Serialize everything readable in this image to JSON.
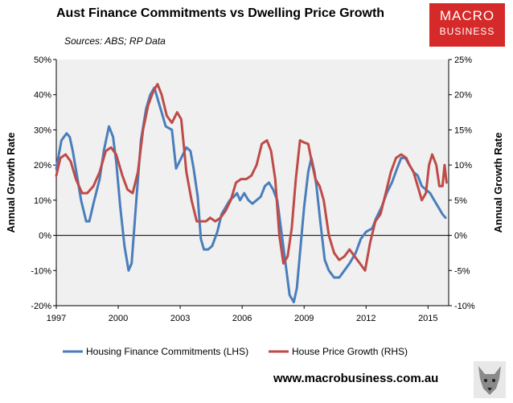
{
  "title": "Aust Finance Commitments vs Dwelling Price Growth",
  "subtitle": "Sources: ABS; RP Data",
  "logo": {
    "line1": "MACRO",
    "line2": "BUSINESS"
  },
  "footer": {
    "url": "www.macrobusiness.com.au"
  },
  "icons": {
    "logo_icon": "wolf-icon"
  },
  "colors": {
    "hfc": "#4a7ebb",
    "hpg": "#be4b48",
    "plot_bg": "#f0f0f0",
    "logo_bg": "#d62a2a"
  },
  "chart_data": {
    "type": "line",
    "title": "Aust Finance Commitments vs Dwelling Price Growth",
    "ylabel": "Annual Growth Rate",
    "y2label": "Annual Growth Rate",
    "xlim": [
      1997,
      2016
    ],
    "ylim": [
      -20,
      50
    ],
    "y2lim": [
      -10,
      25
    ],
    "x_ticks": [
      "1997",
      "2000",
      "2003",
      "2006",
      "2009",
      "2012",
      "2015"
    ],
    "y_ticks": [
      "50%",
      "40%",
      "30%",
      "20%",
      "10%",
      "0%",
      "-10%",
      "-20%"
    ],
    "y2_ticks": [
      "25%",
      "20%",
      "15%",
      "10%",
      "5%",
      "0%",
      "-5%",
      "-10%"
    ],
    "grid": false,
    "legend": "bottom",
    "series": [
      {
        "name": "Housing Finance Commitments (LHS)",
        "axis": "left",
        "x": [
          1997.0,
          1997.25,
          1997.5,
          1997.65,
          1997.8,
          1998.0,
          1998.2,
          1998.45,
          1998.6,
          1998.8,
          1999.1,
          1999.3,
          1999.55,
          1999.75,
          1999.9,
          2000.1,
          2000.3,
          2000.5,
          2000.65,
          2000.75,
          2000.9,
          2001.1,
          2001.35,
          2001.55,
          2001.75,
          2001.95,
          2002.1,
          2002.3,
          2002.6,
          2002.8,
          2003.05,
          2003.3,
          2003.5,
          2003.65,
          2003.85,
          2004.0,
          2004.15,
          2004.35,
          2004.55,
          2004.8,
          2005.0,
          2005.2,
          2005.4,
          2005.6,
          2005.75,
          2005.9,
          2006.1,
          2006.3,
          2006.5,
          2006.7,
          2006.9,
          2007.1,
          2007.3,
          2007.5,
          2007.7,
          2007.9,
          2008.1,
          2008.3,
          2008.5,
          2008.65,
          2008.8,
          2009.0,
          2009.2,
          2009.35,
          2009.5,
          2009.6,
          2009.8,
          2010.0,
          2010.2,
          2010.45,
          2010.7,
          2010.95,
          2011.2,
          2011.5,
          2011.75,
          2012.0,
          2012.3,
          2012.5,
          2012.75,
          2013.0,
          2013.25,
          2013.5,
          2013.7,
          2013.9,
          2014.1,
          2014.3,
          2014.5,
          2014.7,
          2014.9,
          2015.1,
          2015.3,
          2015.5,
          2015.7,
          2015.85
        ],
        "values": [
          19,
          27,
          29,
          28,
          24,
          17,
          10,
          4,
          4,
          9,
          16,
          24,
          31,
          28,
          21,
          8,
          -3,
          -10,
          -8,
          0,
          12,
          27,
          36,
          40,
          42,
          38,
          35,
          31,
          30,
          19,
          22,
          25,
          24,
          19,
          11,
          -1,
          -4,
          -4,
          -3,
          1,
          6,
          8,
          10,
          11,
          12,
          10,
          12,
          10,
          9,
          10,
          11,
          14,
          15,
          13,
          10,
          1,
          -8,
          -17,
          -19,
          -15,
          -5,
          8,
          18,
          22,
          18,
          14,
          3,
          -7,
          -10,
          -12,
          -12,
          -10,
          -8,
          -5,
          -1,
          1,
          2,
          5,
          8,
          12,
          15,
          19,
          22,
          22,
          20,
          18,
          17,
          14,
          13,
          12,
          10,
          8,
          6,
          5
        ]
      },
      {
        "name": "House Price Growth (RHS)",
        "axis": "right",
        "x": [
          1997.0,
          1997.2,
          1997.45,
          1997.7,
          1997.95,
          1998.25,
          1998.5,
          1998.8,
          1999.1,
          1999.4,
          1999.65,
          1999.9,
          2000.2,
          2000.45,
          2000.7,
          2000.95,
          2001.2,
          2001.45,
          2001.7,
          2001.9,
          2002.1,
          2002.35,
          2002.6,
          2002.85,
          2003.05,
          2003.3,
          2003.55,
          2003.8,
          2004.0,
          2004.25,
          2004.45,
          2004.7,
          2004.95,
          2005.2,
          2005.45,
          2005.7,
          2005.95,
          2006.2,
          2006.45,
          2006.7,
          2006.95,
          2007.2,
          2007.4,
          2007.6,
          2007.8,
          2008.0,
          2008.2,
          2008.4,
          2008.6,
          2008.8,
          2009.0,
          2009.2,
          2009.4,
          2009.55,
          2009.75,
          2009.95,
          2010.2,
          2010.45,
          2010.7,
          2010.95,
          2011.2,
          2011.45,
          2011.7,
          2011.95,
          2012.2,
          2012.45,
          2012.7,
          2012.95,
          2013.2,
          2013.45,
          2013.7,
          2013.95,
          2014.1,
          2014.3,
          2014.5,
          2014.7,
          2014.9,
          2015.05,
          2015.2,
          2015.4,
          2015.55,
          2015.7,
          2015.8,
          2015.9
        ],
        "values": [
          8.5,
          11,
          11.5,
          10.5,
          8,
          6,
          6,
          7,
          9,
          12,
          12.5,
          11.5,
          8.5,
          6.5,
          6,
          9,
          15,
          18.5,
          20.5,
          21.5,
          20,
          17,
          16,
          17.5,
          16.5,
          9,
          5,
          2,
          2,
          2,
          2.5,
          2,
          2.5,
          3.5,
          5,
          7.5,
          8,
          8,
          8.5,
          10,
          13,
          13.5,
          12,
          8,
          0,
          -4,
          -3,
          1,
          8,
          13.5,
          13.2,
          13,
          10,
          8,
          7,
          5,
          0,
          -2.5,
          -3.5,
          -3,
          -2,
          -3,
          -4,
          -5,
          -1,
          2,
          3,
          6,
          9,
          11,
          11.5,
          11,
          10,
          9,
          7,
          5,
          6,
          10,
          11.5,
          10,
          7,
          7,
          10,
          7.5
        ]
      }
    ]
  }
}
